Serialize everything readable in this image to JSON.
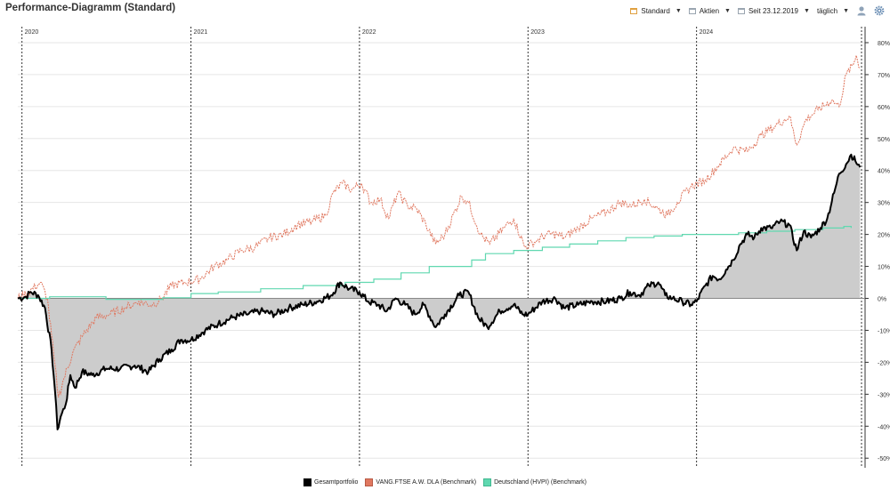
{
  "header": {
    "title": "Performance-Diagramm (Standard)",
    "view_label": "Standard",
    "assets_label": "Aktien",
    "date_label": "Seit 23.12.2019",
    "interval_label": "täglich",
    "icons": [
      "calendar-icon",
      "calendar-icon",
      "calendar-icon",
      "user-icon",
      "gear-icon"
    ]
  },
  "colors": {
    "portfolio": "#000000",
    "benchmark_stocks": "#e07860",
    "benchmark_inflation": "#60d8b0",
    "area_fill": "#cccccc",
    "toolbar_accent": "#e0a040"
  },
  "chart_data": {
    "type": "line",
    "x_start": "2019-12-23",
    "x_end": "2024-12-31",
    "year_ticks": [
      {
        "label": "2020",
        "date": "2020-01-01"
      },
      {
        "label": "2021",
        "date": "2021-01-01"
      },
      {
        "label": "2022",
        "date": "2022-01-01"
      },
      {
        "label": "2023",
        "date": "2023-01-01"
      },
      {
        "label": "2024",
        "date": "2024-01-01"
      }
    ],
    "ylim": [
      -0.53,
      0.85
    ],
    "y_ticks": [
      {
        "v": 0.8,
        "label": "80%"
      },
      {
        "v": 0.7,
        "label": "70%"
      },
      {
        "v": 0.6,
        "label": "60%"
      },
      {
        "v": 0.5,
        "label": "50%"
      },
      {
        "v": 0.4,
        "label": "40%"
      },
      {
        "v": 0.3,
        "label": "30%"
      },
      {
        "v": 0.2,
        "label": "20%"
      },
      {
        "v": 0.1,
        "label": "10%"
      },
      {
        "v": 0.0,
        "label": "0%"
      },
      {
        "v": -0.1,
        "label": "-10%"
      },
      {
        "v": -0.2,
        "label": "-20%"
      },
      {
        "v": -0.3,
        "label": "-30%"
      },
      {
        "v": -0.4,
        "label": "-40%"
      },
      {
        "v": -0.5,
        "label": "-50%"
      }
    ],
    "series": [
      {
        "name": "Gesamtportfolio",
        "color": "#000000",
        "style": "solid-thick-filled",
        "points": [
          [
            "2019-12-23",
            0.0
          ],
          [
            "2020-01-10",
            0.005
          ],
          [
            "2020-01-20",
            0.02
          ],
          [
            "2020-02-05",
            0.01
          ],
          [
            "2020-02-20",
            -0.03
          ],
          [
            "2020-03-05",
            -0.16
          ],
          [
            "2020-03-12",
            -0.28
          ],
          [
            "2020-03-18",
            -0.41
          ],
          [
            "2020-03-25",
            -0.37
          ],
          [
            "2020-04-05",
            -0.33
          ],
          [
            "2020-04-15",
            -0.24
          ],
          [
            "2020-04-25",
            -0.28
          ],
          [
            "2020-05-10",
            -0.23
          ],
          [
            "2020-06-01",
            -0.24
          ],
          [
            "2020-07-01",
            -0.22
          ],
          [
            "2020-08-01",
            -0.22
          ],
          [
            "2020-09-01",
            -0.21
          ],
          [
            "2020-10-01",
            -0.23
          ],
          [
            "2020-10-25",
            -0.19
          ],
          [
            "2020-11-20",
            -0.16
          ],
          [
            "2020-12-10",
            -0.13
          ],
          [
            "2021-01-01",
            -0.13
          ],
          [
            "2021-02-01",
            -0.1
          ],
          [
            "2021-03-01",
            -0.08
          ],
          [
            "2021-04-01",
            -0.06
          ],
          [
            "2021-05-01",
            -0.05
          ],
          [
            "2021-06-01",
            -0.04
          ],
          [
            "2021-07-01",
            -0.05
          ],
          [
            "2021-08-01",
            -0.03
          ],
          [
            "2021-09-01",
            -0.02
          ],
          [
            "2021-10-01",
            -0.01
          ],
          [
            "2021-11-01",
            0.01
          ],
          [
            "2021-11-20",
            0.05
          ],
          [
            "2021-12-10",
            0.03
          ],
          [
            "2022-01-01",
            0.02
          ],
          [
            "2022-01-20",
            -0.01
          ],
          [
            "2022-02-10",
            -0.02
          ],
          [
            "2022-03-01",
            -0.04
          ],
          [
            "2022-03-20",
            0.0
          ],
          [
            "2022-04-10",
            -0.02
          ],
          [
            "2022-05-01",
            -0.05
          ],
          [
            "2022-05-20",
            -0.02
          ],
          [
            "2022-06-15",
            -0.09
          ],
          [
            "2022-07-05",
            -0.05
          ],
          [
            "2022-08-05",
            0.01
          ],
          [
            "2022-08-25",
            0.02
          ],
          [
            "2022-09-15",
            -0.06
          ],
          [
            "2022-10-05",
            -0.09
          ],
          [
            "2022-11-01",
            -0.04
          ],
          [
            "2022-12-01",
            -0.02
          ],
          [
            "2022-12-20",
            -0.05
          ],
          [
            "2023-01-01",
            -0.05
          ],
          [
            "2023-02-01",
            -0.01
          ],
          [
            "2023-03-01",
            0.0
          ],
          [
            "2023-03-20",
            -0.03
          ],
          [
            "2023-04-20",
            -0.02
          ],
          [
            "2023-05-20",
            -0.01
          ],
          [
            "2023-06-20",
            -0.01
          ],
          [
            "2023-07-20",
            0.0
          ],
          [
            "2023-08-10",
            0.02
          ],
          [
            "2023-08-30",
            0.01
          ],
          [
            "2023-09-20",
            0.04
          ],
          [
            "2023-10-10",
            0.05
          ],
          [
            "2023-10-25",
            0.01
          ],
          [
            "2023-11-10",
            0.0
          ],
          [
            "2023-12-01",
            -0.01
          ],
          [
            "2023-12-20",
            -0.02
          ],
          [
            "2024-01-01",
            -0.01
          ],
          [
            "2024-01-20",
            0.04
          ],
          [
            "2024-02-05",
            0.07
          ],
          [
            "2024-02-20",
            0.06
          ],
          [
            "2024-03-05",
            0.09
          ],
          [
            "2024-03-20",
            0.12
          ],
          [
            "2024-04-05",
            0.17
          ],
          [
            "2024-04-20",
            0.2
          ],
          [
            "2024-05-05",
            0.19
          ],
          [
            "2024-05-20",
            0.22
          ],
          [
            "2024-06-10",
            0.22
          ],
          [
            "2024-06-30",
            0.24
          ],
          [
            "2024-07-20",
            0.23
          ],
          [
            "2024-08-05",
            0.15
          ],
          [
            "2024-08-20",
            0.21
          ],
          [
            "2024-09-05",
            0.19
          ],
          [
            "2024-09-25",
            0.22
          ],
          [
            "2024-10-10",
            0.25
          ],
          [
            "2024-10-25",
            0.33
          ],
          [
            "2024-11-05",
            0.39
          ],
          [
            "2024-11-20",
            0.42
          ],
          [
            "2024-12-01",
            0.45
          ],
          [
            "2024-12-10",
            0.43
          ],
          [
            "2024-12-20",
            0.41
          ]
        ]
      },
      {
        "name": "VANG.FTSE A.W. DLA (Benchmark)",
        "color": "#e07860",
        "style": "dashed",
        "points": [
          [
            "2019-12-23",
            0.0
          ],
          [
            "2020-01-15",
            0.02
          ],
          [
            "2020-02-10",
            0.05
          ],
          [
            "2020-02-25",
            0.0
          ],
          [
            "2020-03-10",
            -0.18
          ],
          [
            "2020-03-20",
            -0.31
          ],
          [
            "2020-04-01",
            -0.25
          ],
          [
            "2020-04-20",
            -0.17
          ],
          [
            "2020-05-10",
            -0.12
          ],
          [
            "2020-06-10",
            -0.06
          ],
          [
            "2020-07-10",
            -0.05
          ],
          [
            "2020-08-10",
            -0.03
          ],
          [
            "2020-09-10",
            -0.01
          ],
          [
            "2020-10-10",
            -0.02
          ],
          [
            "2020-10-30",
            0.0
          ],
          [
            "2020-11-20",
            0.04
          ],
          [
            "2020-12-20",
            0.05
          ],
          [
            "2021-01-20",
            0.06
          ],
          [
            "2021-02-20",
            0.1
          ],
          [
            "2021-03-20",
            0.12
          ],
          [
            "2021-04-20",
            0.15
          ],
          [
            "2021-05-20",
            0.16
          ],
          [
            "2021-06-20",
            0.19
          ],
          [
            "2021-07-20",
            0.2
          ],
          [
            "2021-08-20",
            0.23
          ],
          [
            "2021-09-20",
            0.24
          ],
          [
            "2021-10-20",
            0.26
          ],
          [
            "2021-11-05",
            0.33
          ],
          [
            "2021-11-25",
            0.36
          ],
          [
            "2021-12-15",
            0.34
          ],
          [
            "2022-01-05",
            0.36
          ],
          [
            "2022-01-25",
            0.3
          ],
          [
            "2022-02-15",
            0.31
          ],
          [
            "2022-03-05",
            0.25
          ],
          [
            "2022-03-25",
            0.33
          ],
          [
            "2022-04-15",
            0.29
          ],
          [
            "2022-05-05",
            0.28
          ],
          [
            "2022-05-25",
            0.23
          ],
          [
            "2022-06-15",
            0.17
          ],
          [
            "2022-07-05",
            0.2
          ],
          [
            "2022-08-10",
            0.32
          ],
          [
            "2022-08-25",
            0.3
          ],
          [
            "2022-09-20",
            0.2
          ],
          [
            "2022-10-10",
            0.17
          ],
          [
            "2022-11-10",
            0.22
          ],
          [
            "2022-12-01",
            0.25
          ],
          [
            "2022-12-25",
            0.16
          ],
          [
            "2023-01-20",
            0.18
          ],
          [
            "2023-02-10",
            0.2
          ],
          [
            "2023-03-05",
            0.2
          ],
          [
            "2023-03-20",
            0.19
          ],
          [
            "2023-04-20",
            0.22
          ],
          [
            "2023-05-20",
            0.25
          ],
          [
            "2023-06-20",
            0.27
          ],
          [
            "2023-07-20",
            0.3
          ],
          [
            "2023-08-15",
            0.29
          ],
          [
            "2023-09-10",
            0.31
          ],
          [
            "2023-10-10",
            0.28
          ],
          [
            "2023-10-30",
            0.26
          ],
          [
            "2023-11-20",
            0.3
          ],
          [
            "2023-12-20",
            0.35
          ],
          [
            "2024-01-20",
            0.37
          ],
          [
            "2024-02-20",
            0.42
          ],
          [
            "2024-03-20",
            0.47
          ],
          [
            "2024-04-20",
            0.46
          ],
          [
            "2024-05-20",
            0.51
          ],
          [
            "2024-06-20",
            0.54
          ],
          [
            "2024-07-20",
            0.57
          ],
          [
            "2024-08-05",
            0.48
          ],
          [
            "2024-08-25",
            0.56
          ],
          [
            "2024-09-20",
            0.59
          ],
          [
            "2024-10-20",
            0.62
          ],
          [
            "2024-11-05",
            0.6
          ],
          [
            "2024-11-20",
            0.7
          ],
          [
            "2024-12-05",
            0.73
          ],
          [
            "2024-12-12",
            0.76
          ],
          [
            "2024-12-20",
            0.72
          ]
        ]
      },
      {
        "name": "Deutschland (HVPI) (Benchmark)",
        "color": "#60d8b0",
        "style": "steps",
        "points": [
          [
            "2019-12-23",
            0.0
          ],
          [
            "2020-03-01",
            0.005
          ],
          [
            "2020-07-01",
            -0.003
          ],
          [
            "2020-11-01",
            0.002
          ],
          [
            "2021-01-01",
            0.015
          ],
          [
            "2021-03-01",
            0.02
          ],
          [
            "2021-06-01",
            0.03
          ],
          [
            "2021-09-01",
            0.04
          ],
          [
            "2021-12-01",
            0.05
          ],
          [
            "2022-02-01",
            0.06
          ],
          [
            "2022-04-01",
            0.08
          ],
          [
            "2022-06-01",
            0.1
          ],
          [
            "2022-09-01",
            0.12
          ],
          [
            "2022-10-01",
            0.14
          ],
          [
            "2022-12-01",
            0.15
          ],
          [
            "2023-02-01",
            0.16
          ],
          [
            "2023-04-01",
            0.17
          ],
          [
            "2023-06-01",
            0.18
          ],
          [
            "2023-08-01",
            0.19
          ],
          [
            "2023-10-01",
            0.195
          ],
          [
            "2023-12-01",
            0.2
          ],
          [
            "2024-02-01",
            0.2
          ],
          [
            "2024-04-01",
            0.205
          ],
          [
            "2024-06-01",
            0.21
          ],
          [
            "2024-08-01",
            0.215
          ],
          [
            "2024-10-01",
            0.22
          ],
          [
            "2024-11-15",
            0.225
          ],
          [
            "2024-12-01",
            0.22
          ]
        ]
      }
    ]
  },
  "legend": {
    "items": [
      {
        "label": "Gesamtportfolio",
        "color": "#000000"
      },
      {
        "label": "VANG.FTSE A.W. DLA (Benchmark)",
        "color": "#e07860"
      },
      {
        "label": "Deutschland (HVPI) (Benchmark)",
        "color": "#60d8b0"
      }
    ]
  }
}
